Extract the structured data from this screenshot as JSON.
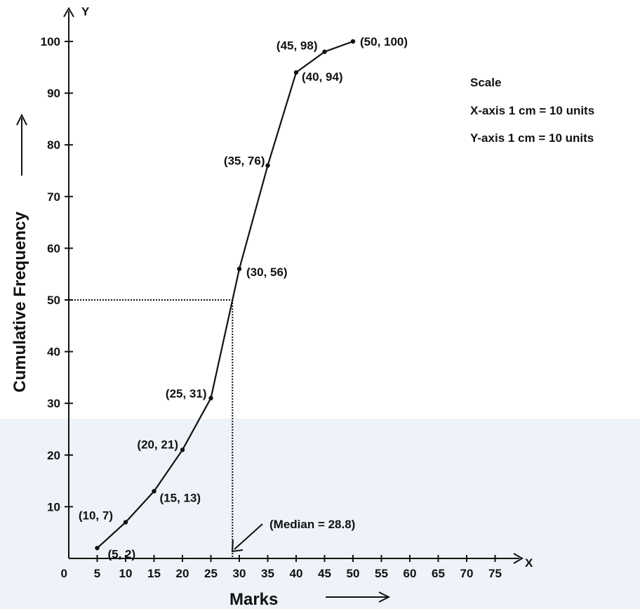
{
  "chart_data": {
    "type": "line",
    "title": "",
    "xlabel": "Marks",
    "ylabel": "Cumulative Frequency",
    "x_axis_letter": "X",
    "y_axis_letter": "Y",
    "origin_label": "0",
    "xlim": [
      0,
      75
    ],
    "ylim": [
      0,
      100
    ],
    "x_ticks": [
      5,
      10,
      15,
      20,
      25,
      30,
      35,
      40,
      45,
      50,
      55,
      60,
      65,
      70,
      75
    ],
    "y_ticks": [
      10,
      20,
      30,
      40,
      50,
      60,
      70,
      80,
      90,
      100
    ],
    "grid": false,
    "series": [
      {
        "x": [
          5,
          10,
          15,
          20,
          25,
          30,
          35,
          40,
          45,
          50
        ],
        "y": [
          2,
          7,
          13,
          21,
          31,
          56,
          76,
          94,
          98,
          100
        ],
        "point_labels": [
          "(5, 2)",
          "(10, 7)",
          "(15, 13)",
          "(20, 21)",
          "(25, 31)",
          "(30, 56)",
          "(35, 76)",
          "(40, 94)",
          "(45, 98)",
          "(50, 100)"
        ]
      }
    ],
    "annotations": {
      "median_label": "(Median = 28.8)",
      "median_x": 28.8,
      "median_y": 50
    },
    "scale": {
      "heading": "Scale",
      "x_line": "X-axis  1 cm = 10 units",
      "y_line": "Y-axis  1 cm = 10 units"
    }
  }
}
